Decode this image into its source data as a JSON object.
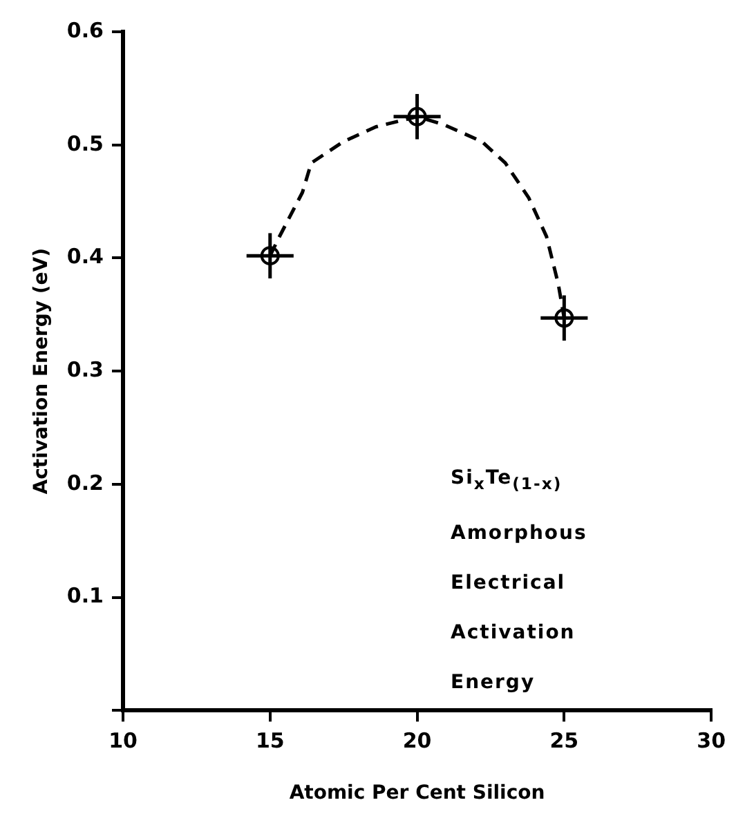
{
  "chart_data": {
    "type": "scatter",
    "xlabel": "Atomic Per Cent Silicon",
    "ylabel": "Activation Energy (eV)",
    "xlim": [
      10,
      30
    ],
    "xticks": [
      10,
      15,
      20,
      25,
      30
    ],
    "ylim": [
      0,
      0.6
    ],
    "yticks": [
      {
        "value": 0,
        "label": null
      },
      0.1,
      0.2,
      0.3,
      0.4,
      0.5,
      0.6
    ],
    "annotations": [
      "Si$_{x}$Te$_{(1-x)}$\nAmorphous\nElectrical\nActivation\nEnergy"
    ],
    "series": [
      {
        "type": "scatter",
        "x": [
          15,
          20,
          25
        ],
        "values": [
          0.402,
          0.525,
          0.347
        ],
        "errors": [
          0.02,
          0.02,
          0.02
        ],
        "xerrors": [
          0.8,
          0.8,
          0.8
        ],
        "color": "#000000",
        "marker": "circle"
      },
      {
        "type": "line",
        "x": [
          15,
          15.3,
          16.1,
          16.4,
          17.5,
          18.6,
          20,
          20.9,
          22.2,
          23,
          23.8,
          24.4,
          24.8,
          25
        ],
        "values": [
          0.402,
          0.418,
          0.458,
          0.484,
          0.503,
          0.516,
          0.525,
          0.518,
          0.503,
          0.484,
          0.453,
          0.419,
          0.377,
          0.347
        ],
        "color": "#000000",
        "marker": "none",
        "line_style": "dashed"
      }
    ]
  }
}
